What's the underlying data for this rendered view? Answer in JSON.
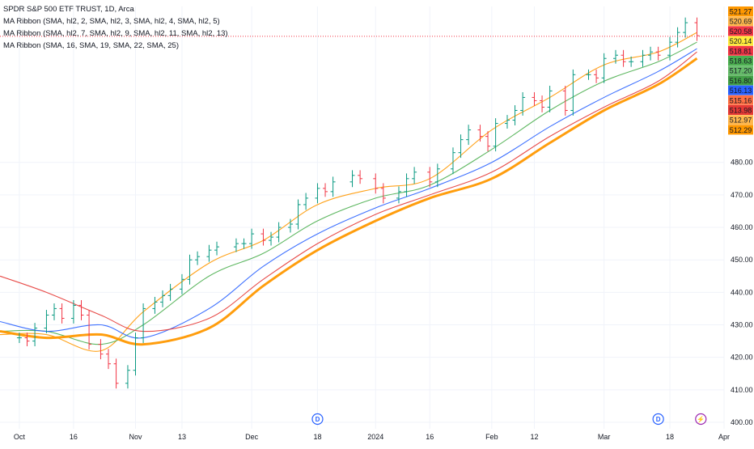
{
  "title": "SPDR S&P 500 ETF TRUST, 1D, Arca",
  "legend": [
    "MA Ribbon (SMA, hl2, 2, SMA, hl2, 3, SMA, hl2, 4, SMA, hl2, 5)",
    "MA Ribbon (SMA, hl2, 7, SMA, hl2, 9, SMA, hl2, 11, SMA, hl2, 13)",
    "MA Ribbon (SMA, 16, SMA, 19, SMA, 22, SMA, 25)"
  ],
  "colors": {
    "background": "#ffffff",
    "grid": "#f0f3fa",
    "axis_text": "#131722",
    "current_price_line": "#f23645"
  },
  "event_markers": [
    {
      "label": "D",
      "kind": "dividend",
      "color": "#2962ff"
    },
    {
      "label": "D",
      "kind": "dividend",
      "color": "#2962ff"
    },
    {
      "label": "⚡",
      "kind": "event",
      "color": "#9c27b0"
    }
  ],
  "chart_data": {
    "type": "line",
    "subtype": "ohlc-bars-with-moving-average-ribbons",
    "title": "SPDR S&P 500 ETF TRUST, 1D, Arca",
    "ylim": [
      398,
      528
    ],
    "y_ticks": [
      400,
      410,
      420,
      430,
      440,
      450,
      460,
      470,
      480
    ],
    "x_ticks": [
      "Oct",
      "16",
      "Nov",
      "13",
      "Dec",
      "18",
      "2024",
      "16",
      "Feb",
      "12",
      "Mar",
      "18",
      "Apr"
    ],
    "x_tick_dates": [
      "2023-10-02",
      "2023-10-16",
      "2023-11-01",
      "2023-11-13",
      "2023-12-01",
      "2023-12-18",
      "2024-01-02",
      "2024-01-16",
      "2024-02-01",
      "2024-02-12",
      "2024-03-01",
      "2024-03-18",
      "2024-04-01"
    ],
    "x_range": [
      "2023-09-27",
      "2024-04-01"
    ],
    "grid": true,
    "right_axis_labels": [
      {
        "value": 521.27,
        "color": "#ff9800"
      },
      {
        "value": 520.69,
        "color": "#ffb74d"
      },
      {
        "value": 520.58,
        "color": "#f23645"
      },
      {
        "value": 520.14,
        "color": "#ffeb3b"
      },
      {
        "value": 518.81,
        "color": "#f23645"
      },
      {
        "value": 518.63,
        "color": "#4caf50"
      },
      {
        "value": 517.2,
        "color": "#66bb6a"
      },
      {
        "value": 516.8,
        "color": "#43a047"
      },
      {
        "value": 516.13,
        "color": "#2962ff"
      },
      {
        "value": 515.16,
        "color": "#ff7043"
      },
      {
        "value": 513.98,
        "color": "#e53935"
      },
      {
        "value": 512.97,
        "color": "#ffb74d"
      },
      {
        "value": 512.29,
        "color": "#ff9800"
      }
    ],
    "price_series": {
      "name": "",
      "x": [
        "2023-10-02",
        "2023-10-04",
        "2023-10-06",
        "2023-10-09",
        "2023-10-11",
        "2023-10-13",
        "2023-10-16",
        "2023-10-18",
        "2023-10-20",
        "2023-10-23",
        "2023-10-25",
        "2023-10-27",
        "2023-10-30",
        "2023-11-01",
        "2023-11-03",
        "2023-11-06",
        "2023-11-08",
        "2023-11-10",
        "2023-11-13",
        "2023-11-15",
        "2023-11-17",
        "2023-11-20",
        "2023-11-22",
        "2023-11-27",
        "2023-11-29",
        "2023-12-01",
        "2023-12-04",
        "2023-12-06",
        "2023-12-08",
        "2023-12-11",
        "2023-12-13",
        "2023-12-15",
        "2023-12-18",
        "2023-12-20",
        "2023-12-22",
        "2023-12-27",
        "2023-12-29",
        "2024-01-02",
        "2024-01-04",
        "2024-01-08",
        "2024-01-10",
        "2024-01-12",
        "2024-01-16",
        "2024-01-18",
        "2024-01-22",
        "2024-01-24",
        "2024-01-26",
        "2024-01-29",
        "2024-01-31",
        "2024-02-02",
        "2024-02-05",
        "2024-02-07",
        "2024-02-09",
        "2024-02-12",
        "2024-02-14",
        "2024-02-16",
        "2024-02-20",
        "2024-02-22",
        "2024-02-26",
        "2024-02-28",
        "2024-03-01",
        "2024-03-04",
        "2024-03-06",
        "2024-03-08",
        "2024-03-11",
        "2024-03-13",
        "2024-03-15",
        "2024-03-18",
        "2024-03-20",
        "2024-03-22",
        "2024-03-25"
      ],
      "y": [
        426,
        425,
        429,
        433,
        435,
        432,
        436,
        433,
        424,
        421,
        418,
        412,
        416,
        426,
        435,
        437,
        439,
        441,
        444,
        450,
        451,
        453,
        454,
        455,
        455,
        458,
        456,
        457,
        460,
        461,
        467,
        469,
        472,
        471,
        474,
        476,
        475,
        472,
        469,
        471,
        475,
        477,
        474,
        478,
        483,
        487,
        490,
        488,
        485,
        492,
        493,
        496,
        500,
        499,
        497,
        502,
        496,
        507,
        507,
        506,
        512,
        513,
        511,
        511,
        513,
        514,
        513,
        517,
        520,
        523,
        519
      ]
    },
    "series": [
      {
        "x": [
          "2023-09-27",
          "2023-10-09",
          "2023-10-23",
          "2023-11-03",
          "2023-11-20",
          "2023-12-04",
          "2023-12-18",
          "2024-01-02",
          "2024-01-16",
          "2024-02-01",
          "2024-02-16",
          "2024-03-01",
          "2024-03-15",
          "2024-03-25"
        ],
        "values": [
          427,
          427,
          422,
          434,
          449,
          456,
          467,
          472,
          475,
          490,
          500,
          510,
          514,
          520
        ],
        "color": "#ff9800"
      },
      {
        "x": [
          "2023-09-27",
          "2023-10-09",
          "2023-10-23",
          "2023-11-03",
          "2023-11-20",
          "2023-12-04",
          "2023-12-18",
          "2024-01-02",
          "2024-01-16",
          "2024-02-01",
          "2024-02-16",
          "2024-03-01",
          "2024-03-15",
          "2024-03-25"
        ],
        "values": [
          428,
          428,
          424,
          430,
          445,
          452,
          462,
          469,
          473,
          484,
          496,
          505,
          511,
          517
        ],
        "color": "#4caf50"
      },
      {
        "x": [
          "2023-09-27",
          "2023-10-09",
          "2023-10-23",
          "2023-11-03",
          "2023-11-20",
          "2023-12-04",
          "2023-12-18",
          "2024-01-02",
          "2024-01-16",
          "2024-02-01",
          "2024-02-16",
          "2024-03-01",
          "2024-03-15",
          "2024-03-25"
        ],
        "values": [
          431,
          428,
          430,
          426,
          435,
          448,
          458,
          466,
          472,
          480,
          491,
          500,
          508,
          515
        ],
        "color": "#2962ff"
      },
      {
        "x": [
          "2023-09-27",
          "2023-10-09",
          "2023-10-23",
          "2023-11-03",
          "2023-11-20",
          "2023-12-04",
          "2023-12-18",
          "2024-01-02",
          "2024-01-16",
          "2024-02-01",
          "2024-02-16",
          "2024-03-01",
          "2024-03-15",
          "2024-03-25"
        ],
        "values": [
          445,
          440,
          433,
          428,
          432,
          444,
          455,
          464,
          470,
          477,
          488,
          497,
          505,
          514
        ],
        "color": "#e53935"
      },
      {
        "x": [
          "2023-09-27",
          "2023-10-09",
          "2023-10-23",
          "2023-11-03",
          "2023-11-20",
          "2023-12-04",
          "2023-12-18",
          "2024-01-02",
          "2024-01-16",
          "2024-02-01",
          "2024-02-16",
          "2024-03-01",
          "2024-03-15",
          "2024-03-25"
        ],
        "values": [
          428,
          426,
          427,
          424,
          429,
          442,
          453,
          462,
          469,
          475,
          486,
          496,
          504,
          512
        ],
        "color": "#ff9800"
      }
    ]
  }
}
